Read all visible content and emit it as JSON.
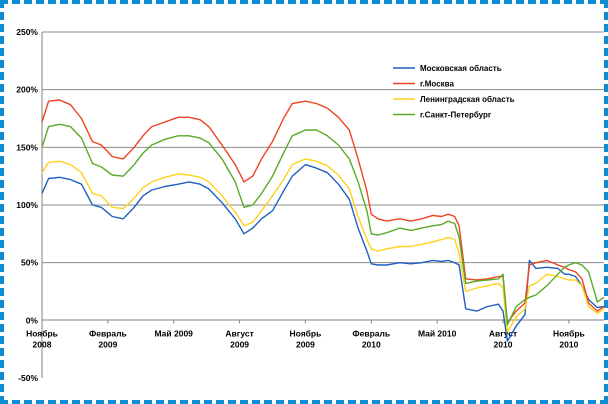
{
  "chart_data": {
    "type": "line",
    "title": "",
    "xlabel": "",
    "ylabel": "",
    "ylim": [
      -50,
      250
    ],
    "yticks": [
      "250%",
      "200%",
      "150%",
      "100%",
      "50%",
      "0%",
      "-50%"
    ],
    "grid": "horizontal",
    "legend_placement": "top-right",
    "x_tick_labels": [
      {
        "line1": "Ноябрь",
        "line2": "2008",
        "month": 0
      },
      {
        "line1": "Февраль",
        "line2": "2009",
        "month": 3
      },
      {
        "line1": "Май 2009",
        "line2": "",
        "month": 6
      },
      {
        "line1": "Август",
        "line2": "2009",
        "month": 9
      },
      {
        "line1": "Ноябрь",
        "line2": "2009",
        "month": 12
      },
      {
        "line1": "Февраль",
        "line2": "2010",
        "month": 15
      },
      {
        "line1": "Май 2010",
        "line2": "",
        "month": 18
      },
      {
        "line1": "Август",
        "line2": "2010",
        "month": 21
      },
      {
        "line1": "Ноябрь",
        "line2": "2010",
        "month": 24
      }
    ],
    "series": [
      {
        "name": "Московская область",
        "color": "#1f5fbf",
        "x": [
          0,
          0.3,
          0.8,
          1.3,
          1.8,
          2.3,
          2.7,
          3.2,
          3.7,
          4.2,
          4.6,
          5.0,
          5.6,
          6.2,
          6.7,
          7.2,
          7.6,
          8.2,
          8.8,
          9.2,
          9.6,
          10.0,
          10.5,
          11.0,
          11.4,
          12.0,
          12.5,
          13.0,
          13.5,
          14.0,
          14.4,
          14.8,
          15.0,
          15.3,
          15.7,
          16.3,
          16.8,
          17.3,
          17.8,
          18.2,
          18.5,
          18.8,
          19.0,
          19.3,
          19.8,
          20.3,
          20.8,
          21.0,
          21.2,
          21.6,
          22.0,
          22.2,
          22.5,
          23.0,
          23.5,
          23.8,
          24.0,
          24.3,
          24.6,
          24.9,
          25.3,
          25.6
        ],
        "values": [
          110,
          123,
          124,
          122,
          118,
          100,
          98,
          90,
          88,
          98,
          108,
          113,
          116,
          118,
          120,
          118,
          114,
          102,
          88,
          75,
          80,
          88,
          95,
          112,
          125,
          135,
          132,
          128,
          118,
          105,
          80,
          60,
          49,
          48,
          48,
          50,
          49,
          50,
          52,
          51,
          52,
          50,
          48,
          10,
          8,
          12,
          14,
          8,
          -18,
          -5,
          5,
          52,
          45,
          46,
          45,
          40,
          40,
          38,
          30,
          18,
          11,
          12
        ]
      },
      {
        "name": "г.Москва",
        "color": "#ee4422",
        "x": [
          0,
          0.3,
          0.8,
          1.3,
          1.8,
          2.3,
          2.7,
          3.2,
          3.7,
          4.2,
          4.6,
          5.0,
          5.6,
          6.2,
          6.7,
          7.2,
          7.6,
          8.2,
          8.8,
          9.2,
          9.6,
          10.0,
          10.5,
          11.0,
          11.4,
          12.0,
          12.5,
          13.0,
          13.5,
          14.0,
          14.4,
          14.8,
          15.0,
          15.3,
          15.7,
          16.3,
          16.8,
          17.3,
          17.8,
          18.2,
          18.5,
          18.8,
          19.0,
          19.3,
          19.8,
          20.3,
          20.8,
          21.0,
          21.2,
          21.6,
          22.0,
          22.2,
          22.5,
          23.0,
          23.5,
          23.8,
          24.0,
          24.3,
          24.6,
          24.9,
          25.3,
          25.6
        ],
        "values": [
          172,
          190,
          191,
          187,
          175,
          155,
          152,
          142,
          140,
          150,
          160,
          168,
          172,
          176,
          176,
          174,
          168,
          152,
          135,
          120,
          125,
          140,
          155,
          175,
          188,
          190,
          188,
          184,
          176,
          165,
          140,
          112,
          92,
          88,
          86,
          88,
          86,
          88,
          91,
          90,
          92,
          90,
          82,
          36,
          35,
          36,
          38,
          38,
          -2,
          8,
          15,
          48,
          50,
          52,
          48,
          46,
          44,
          42,
          36,
          15,
          8,
          12
        ]
      },
      {
        "name": "Ленинградская область",
        "color": "#ffd21e",
        "x": [
          0,
          0.3,
          0.8,
          1.3,
          1.8,
          2.3,
          2.7,
          3.2,
          3.7,
          4.2,
          4.6,
          5.0,
          5.6,
          6.2,
          6.7,
          7.2,
          7.6,
          8.2,
          8.8,
          9.2,
          9.6,
          10.0,
          10.5,
          11.0,
          11.4,
          12.0,
          12.5,
          13.0,
          13.5,
          14.0,
          14.4,
          14.8,
          15.0,
          15.3,
          15.7,
          16.3,
          16.8,
          17.3,
          17.8,
          18.2,
          18.5,
          18.8,
          19.0,
          19.3,
          19.8,
          20.3,
          20.8,
          21.0,
          21.2,
          21.6,
          22.0,
          22.2,
          22.5,
          23.0,
          23.5,
          23.8,
          24.0,
          24.3,
          24.6,
          24.9,
          25.3,
          25.6
        ],
        "values": [
          128,
          137,
          138,
          135,
          128,
          110,
          108,
          98,
          97,
          106,
          115,
          120,
          124,
          127,
          126,
          124,
          120,
          108,
          94,
          82,
          85,
          95,
          108,
          122,
          135,
          140,
          138,
          134,
          126,
          114,
          90,
          70,
          62,
          60,
          62,
          64,
          64,
          66,
          68,
          70,
          72,
          70,
          58,
          25,
          28,
          30,
          32,
          28,
          -10,
          3,
          10,
          30,
          32,
          40,
          38,
          36,
          35,
          35,
          30,
          12,
          6,
          10
        ]
      },
      {
        "name": "г.Санкт-Петербург",
        "color": "#5aaa28",
        "x": [
          0,
          0.3,
          0.8,
          1.3,
          1.8,
          2.3,
          2.7,
          3.2,
          3.7,
          4.2,
          4.6,
          5.0,
          5.6,
          6.2,
          6.7,
          7.2,
          7.6,
          8.2,
          8.8,
          9.2,
          9.6,
          10.0,
          10.5,
          11.0,
          11.4,
          12.0,
          12.5,
          13.0,
          13.5,
          14.0,
          14.4,
          14.8,
          15.0,
          15.3,
          15.7,
          16.3,
          16.8,
          17.3,
          17.8,
          18.2,
          18.5,
          18.8,
          19.0,
          19.3,
          19.8,
          20.3,
          20.8,
          21.0,
          21.2,
          21.6,
          22.0,
          22.2,
          22.5,
          23.0,
          23.5,
          23.8,
          24.0,
          24.3,
          24.6,
          24.9,
          25.3,
          25.6
        ],
        "values": [
          150,
          168,
          170,
          168,
          158,
          136,
          133,
          126,
          125,
          135,
          145,
          152,
          157,
          160,
          160,
          158,
          154,
          140,
          120,
          98,
          100,
          110,
          125,
          145,
          160,
          165,
          165,
          160,
          152,
          140,
          120,
          95,
          75,
          74,
          76,
          80,
          78,
          80,
          82,
          83,
          86,
          84,
          72,
          32,
          34,
          35,
          36,
          40,
          -4,
          12,
          18,
          20,
          22,
          30,
          40,
          46,
          48,
          50,
          48,
          42,
          16,
          20
        ]
      }
    ]
  }
}
